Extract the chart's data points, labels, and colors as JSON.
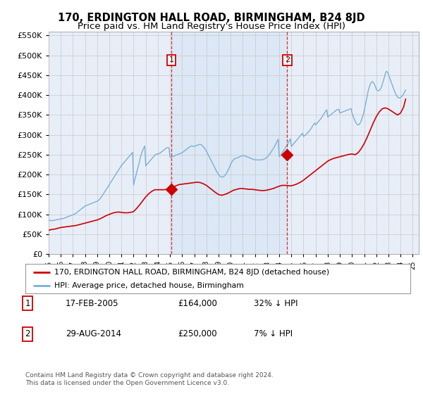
{
  "title": "170, ERDINGTON HALL ROAD, BIRMINGHAM, B24 8JD",
  "subtitle": "Price paid vs. HM Land Registry's House Price Index (HPI)",
  "title_fontsize": 10.5,
  "subtitle_fontsize": 9.5,
  "ytick_values": [
    0,
    50000,
    100000,
    150000,
    200000,
    250000,
    300000,
    350000,
    400000,
    450000,
    500000,
    550000
  ],
  "ylim": [
    0,
    560000
  ],
  "xlim_start": 1995.0,
  "xlim_end": 2025.5,
  "sale1_x": 2005.12,
  "sale1_y": 164000,
  "sale2_x": 2014.66,
  "sale2_y": 250000,
  "sale_color": "#cc0000",
  "sale_marker_size": 8,
  "hpi_color": "#7ab0d4",
  "price_color": "#cc0000",
  "background_color": "#e8eef8",
  "shade_color": "#dce8f5",
  "grid_color": "#c8c8c8",
  "legend_label_price": "170, ERDINGTON HALL ROAD, BIRMINGHAM, B24 8JD (detached house)",
  "legend_label_hpi": "HPI: Average price, detached house, Birmingham",
  "table_rows": [
    [
      "1",
      "17-FEB-2005",
      "£164,000",
      "32% ↓ HPI"
    ],
    [
      "2",
      "29-AUG-2014",
      "£250,000",
      "7% ↓ HPI"
    ]
  ],
  "footnote": "Contains HM Land Registry data © Crown copyright and database right 2024.\nThis data is licensed under the Open Government Licence v3.0.",
  "hpi_years": [
    1995.0,
    1995.08,
    1995.17,
    1995.25,
    1995.33,
    1995.42,
    1995.5,
    1995.58,
    1995.67,
    1995.75,
    1995.83,
    1995.92,
    1996.0,
    1996.08,
    1996.17,
    1996.25,
    1996.33,
    1996.42,
    1996.5,
    1996.58,
    1996.67,
    1996.75,
    1996.83,
    1996.92,
    1997.0,
    1997.08,
    1997.17,
    1997.25,
    1997.33,
    1997.42,
    1997.5,
    1997.58,
    1997.67,
    1997.75,
    1997.83,
    1997.92,
    1998.0,
    1998.08,
    1998.17,
    1998.25,
    1998.33,
    1998.42,
    1998.5,
    1998.58,
    1998.67,
    1998.75,
    1998.83,
    1998.92,
    1999.0,
    1999.08,
    1999.17,
    1999.25,
    1999.33,
    1999.42,
    1999.5,
    1999.58,
    1999.67,
    1999.75,
    1999.83,
    1999.92,
    2000.0,
    2000.08,
    2000.17,
    2000.25,
    2000.33,
    2000.42,
    2000.5,
    2000.58,
    2000.67,
    2000.75,
    2000.83,
    2000.92,
    2001.0,
    2001.08,
    2001.17,
    2001.25,
    2001.33,
    2001.42,
    2001.5,
    2001.58,
    2001.67,
    2001.75,
    2001.83,
    2001.92,
    2002.0,
    2002.08,
    2002.17,
    2002.25,
    2002.33,
    2002.42,
    2002.5,
    2002.58,
    2002.67,
    2002.75,
    2002.83,
    2002.92,
    2003.0,
    2003.08,
    2003.17,
    2003.25,
    2003.33,
    2003.42,
    2003.5,
    2003.58,
    2003.67,
    2003.75,
    2003.83,
    2003.92,
    2004.0,
    2004.08,
    2004.17,
    2004.25,
    2004.33,
    2004.42,
    2004.5,
    2004.58,
    2004.67,
    2004.75,
    2004.83,
    2004.92,
    2005.0,
    2005.08,
    2005.17,
    2005.25,
    2005.33,
    2005.42,
    2005.5,
    2005.58,
    2005.67,
    2005.75,
    2005.83,
    2005.92,
    2006.0,
    2006.08,
    2006.17,
    2006.25,
    2006.33,
    2006.42,
    2006.5,
    2006.58,
    2006.67,
    2006.75,
    2006.83,
    2006.92,
    2007.0,
    2007.08,
    2007.17,
    2007.25,
    2007.33,
    2007.42,
    2007.5,
    2007.58,
    2007.67,
    2007.75,
    2007.83,
    2007.92,
    2008.0,
    2008.08,
    2008.17,
    2008.25,
    2008.33,
    2008.42,
    2008.5,
    2008.58,
    2008.67,
    2008.75,
    2008.83,
    2008.92,
    2009.0,
    2009.08,
    2009.17,
    2009.25,
    2009.33,
    2009.42,
    2009.5,
    2009.58,
    2009.67,
    2009.75,
    2009.83,
    2009.92,
    2010.0,
    2010.08,
    2010.17,
    2010.25,
    2010.33,
    2010.42,
    2010.5,
    2010.58,
    2010.67,
    2010.75,
    2010.83,
    2010.92,
    2011.0,
    2011.08,
    2011.17,
    2011.25,
    2011.33,
    2011.42,
    2011.5,
    2011.58,
    2011.67,
    2011.75,
    2011.83,
    2011.92,
    2012.0,
    2012.08,
    2012.17,
    2012.25,
    2012.33,
    2012.42,
    2012.5,
    2012.58,
    2012.67,
    2012.75,
    2012.83,
    2012.92,
    2013.0,
    2013.08,
    2013.17,
    2013.25,
    2013.33,
    2013.42,
    2013.5,
    2013.58,
    2013.67,
    2013.75,
    2013.83,
    2013.92,
    2014.0,
    2014.08,
    2014.17,
    2014.25,
    2014.33,
    2014.42,
    2014.5,
    2014.58,
    2014.67,
    2014.75,
    2014.83,
    2014.92,
    2015.0,
    2015.08,
    2015.17,
    2015.25,
    2015.33,
    2015.42,
    2015.5,
    2015.58,
    2015.67,
    2015.75,
    2015.83,
    2015.92,
    2016.0,
    2016.08,
    2016.17,
    2016.25,
    2016.33,
    2016.42,
    2016.5,
    2016.58,
    2016.67,
    2016.75,
    2016.83,
    2016.92,
    2017.0,
    2017.08,
    2017.17,
    2017.25,
    2017.33,
    2017.42,
    2017.5,
    2017.58,
    2017.67,
    2017.75,
    2017.83,
    2017.92,
    2018.0,
    2018.08,
    2018.17,
    2018.25,
    2018.33,
    2018.42,
    2018.5,
    2018.58,
    2018.67,
    2018.75,
    2018.83,
    2018.92,
    2019.0,
    2019.08,
    2019.17,
    2019.25,
    2019.33,
    2019.42,
    2019.5,
    2019.58,
    2019.67,
    2019.75,
    2019.83,
    2019.92,
    2020.0,
    2020.08,
    2020.17,
    2020.25,
    2020.33,
    2020.42,
    2020.5,
    2020.58,
    2020.67,
    2020.75,
    2020.83,
    2020.92,
    2021.0,
    2021.08,
    2021.17,
    2021.25,
    2021.33,
    2021.42,
    2021.5,
    2021.58,
    2021.67,
    2021.75,
    2021.83,
    2021.92,
    2022.0,
    2022.08,
    2022.17,
    2022.25,
    2022.33,
    2022.42,
    2022.5,
    2022.58,
    2022.67,
    2022.75,
    2022.83,
    2022.92,
    2023.0,
    2023.08,
    2023.17,
    2023.25,
    2023.33,
    2023.42,
    2023.5,
    2023.58,
    2023.67,
    2023.75,
    2023.83,
    2023.92,
    2024.0,
    2024.08,
    2024.17,
    2024.25,
    2024.33,
    2024.42
  ],
  "hpi_values": [
    86000,
    85000,
    84500,
    84000,
    84500,
    85000,
    85500,
    86000,
    86500,
    87000,
    87500,
    88000,
    88500,
    89000,
    89500,
    90000,
    91000,
    92000,
    93000,
    94000,
    95000,
    96000,
    97000,
    98000,
    99000,
    100000,
    101000,
    103000,
    105000,
    107000,
    109000,
    111000,
    113000,
    115000,
    117000,
    119000,
    121000,
    122000,
    123000,
    124000,
    125000,
    126000,
    127000,
    128000,
    129000,
    130000,
    131000,
    132000,
    133000,
    135000,
    137000,
    140000,
    143000,
    147000,
    151000,
    155000,
    159000,
    163000,
    167000,
    171000,
    175000,
    179000,
    183000,
    187000,
    191000,
    195000,
    199000,
    203000,
    207000,
    211000,
    215000,
    219000,
    223000,
    226000,
    229000,
    232000,
    235000,
    238000,
    241000,
    244000,
    247000,
    250000,
    253000,
    256000,
    174000,
    185000,
    195000,
    205000,
    215000,
    225000,
    235000,
    245000,
    254000,
    261000,
    267000,
    272000,
    222000,
    225000,
    228000,
    231000,
    234000,
    237000,
    240000,
    243000,
    246000,
    249000,
    251000,
    252000,
    252000,
    253000,
    254000,
    256000,
    258000,
    260000,
    262000,
    264000,
    266000,
    268000,
    268000,
    267000,
    244000,
    244000,
    245000,
    246000,
    247000,
    248000,
    249000,
    250000,
    251000,
    252000,
    253000,
    254000,
    255000,
    257000,
    259000,
    261000,
    263000,
    265000,
    267000,
    269000,
    271000,
    272000,
    272000,
    271000,
    271000,
    272000,
    273000,
    274000,
    275000,
    276000,
    276000,
    275000,
    273000,
    270000,
    267000,
    263000,
    259000,
    254000,
    249000,
    244000,
    239000,
    234000,
    229000,
    224000,
    219000,
    214000,
    209000,
    204000,
    200000,
    197000,
    195000,
    194000,
    194000,
    195000,
    197000,
    200000,
    204000,
    209000,
    214000,
    220000,
    226000,
    231000,
    235000,
    238000,
    240000,
    241000,
    242000,
    243000,
    244000,
    245000,
    246000,
    247000,
    248000,
    248000,
    247000,
    246000,
    245000,
    244000,
    243000,
    242000,
    241000,
    240000,
    239000,
    238000,
    237000,
    237000,
    237000,
    237000,
    237000,
    237000,
    237000,
    237000,
    238000,
    239000,
    240000,
    242000,
    244000,
    247000,
    250000,
    253000,
    257000,
    261000,
    265000,
    269000,
    274000,
    279000,
    284000,
    289000,
    245000,
    248000,
    251000,
    255000,
    259000,
    263000,
    267000,
    271000,
    275000,
    280000,
    285000,
    290000,
    271000,
    274000,
    277000,
    280000,
    283000,
    286000,
    289000,
    292000,
    295000,
    298000,
    301000,
    304000,
    296000,
    298000,
    300000,
    302000,
    305000,
    308000,
    311000,
    314000,
    318000,
    322000,
    326000,
    330000,
    325000,
    328000,
    331000,
    334000,
    337000,
    340000,
    344000,
    348000,
    352000,
    356000,
    360000,
    363000,
    345000,
    347000,
    349000,
    351000,
    353000,
    355000,
    357000,
    359000,
    361000,
    363000,
    364000,
    364000,
    355000,
    356000,
    357000,
    358000,
    359000,
    360000,
    361000,
    362000,
    363000,
    364000,
    365000,
    366000,
    355000,
    348000,
    341000,
    335000,
    330000,
    326000,
    325000,
    326000,
    330000,
    335000,
    342000,
    350000,
    360000,
    372000,
    385000,
    398000,
    410000,
    420000,
    428000,
    432000,
    434000,
    432000,
    428000,
    422000,
    415000,
    412000,
    411000,
    412000,
    415000,
    420000,
    428000,
    436000,
    445000,
    455000,
    460000,
    458000,
    452000,
    445000,
    438000,
    431000,
    424000,
    417000,
    410000,
    404000,
    399000,
    395000,
    393000,
    393000,
    394000,
    396000,
    399000,
    403000,
    408000,
    413000
  ],
  "price_years": [
    1995.0,
    1995.25,
    1995.5,
    1995.75,
    1996.0,
    1996.25,
    1996.5,
    1996.75,
    1997.0,
    1997.25,
    1997.5,
    1997.75,
    1998.0,
    1998.25,
    1998.5,
    1998.75,
    1999.0,
    1999.25,
    1999.5,
    1999.75,
    2000.0,
    2000.25,
    2000.5,
    2000.75,
    2001.0,
    2001.25,
    2001.5,
    2001.75,
    2002.0,
    2002.25,
    2002.5,
    2002.75,
    2003.0,
    2003.25,
    2003.5,
    2003.75,
    2004.0,
    2004.25,
    2004.5,
    2004.75,
    2005.0,
    2005.25,
    2005.5,
    2005.75,
    2006.0,
    2006.25,
    2006.5,
    2006.75,
    2007.0,
    2007.25,
    2007.5,
    2007.75,
    2008.0,
    2008.25,
    2008.5,
    2008.75,
    2009.0,
    2009.25,
    2009.5,
    2009.75,
    2010.0,
    2010.25,
    2010.5,
    2010.75,
    2011.0,
    2011.25,
    2011.5,
    2011.75,
    2012.0,
    2012.25,
    2012.5,
    2012.75,
    2013.0,
    2013.25,
    2013.5,
    2013.75,
    2014.0,
    2014.25,
    2014.5,
    2014.75,
    2015.0,
    2015.25,
    2015.5,
    2015.75,
    2016.0,
    2016.25,
    2016.5,
    2016.75,
    2017.0,
    2017.25,
    2017.5,
    2017.75,
    2018.0,
    2018.25,
    2018.5,
    2018.75,
    2019.0,
    2019.25,
    2019.5,
    2019.75,
    2020.0,
    2020.25,
    2020.5,
    2020.75,
    2021.0,
    2021.25,
    2021.5,
    2021.75,
    2022.0,
    2022.25,
    2022.5,
    2022.75,
    2023.0,
    2023.25,
    2023.5,
    2023.75,
    2024.0,
    2024.25,
    2024.42
  ],
  "price_values": [
    60000,
    62000,
    63000,
    65000,
    67000,
    68000,
    69000,
    70000,
    71000,
    72000,
    74000,
    76000,
    78000,
    80000,
    82000,
    84000,
    86000,
    89000,
    93000,
    97000,
    100000,
    103000,
    105000,
    106000,
    105000,
    104000,
    104000,
    105000,
    107000,
    115000,
    124000,
    134000,
    144000,
    152000,
    158000,
    162000,
    162000,
    162000,
    162000,
    163000,
    164000,
    168000,
    172000,
    175000,
    176000,
    177000,
    178000,
    179000,
    180000,
    181000,
    180000,
    177000,
    173000,
    167000,
    161000,
    155000,
    150000,
    148000,
    150000,
    153000,
    157000,
    161000,
    163000,
    165000,
    165000,
    164000,
    163000,
    163000,
    162000,
    161000,
    160000,
    160000,
    161000,
    163000,
    165000,
    168000,
    171000,
    173000,
    173000,
    172000,
    172000,
    174000,
    177000,
    181000,
    186000,
    192000,
    198000,
    204000,
    210000,
    216000,
    222000,
    228000,
    234000,
    238000,
    241000,
    243000,
    245000,
    247000,
    249000,
    251000,
    252000,
    250000,
    255000,
    265000,
    278000,
    294000,
    312000,
    330000,
    346000,
    358000,
    366000,
    368000,
    365000,
    360000,
    355000,
    350000,
    355000,
    370000,
    390000
  ]
}
